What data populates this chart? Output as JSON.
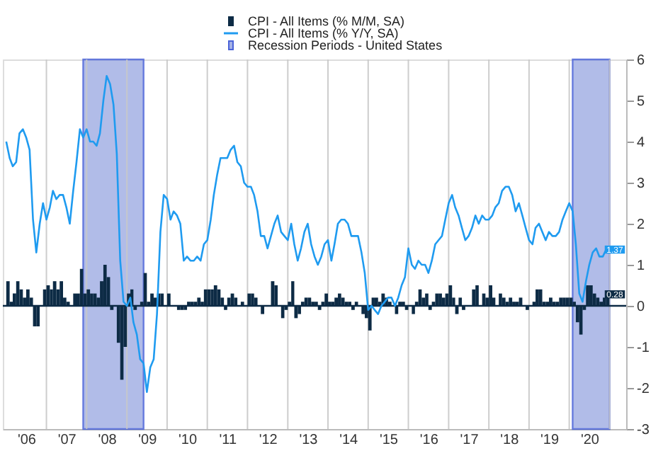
{
  "chart_data": {
    "type": "bar",
    "x": [
      "2006-01",
      "2006-02",
      "2006-03",
      "2006-04",
      "2006-05",
      "2006-06",
      "2006-07",
      "2006-08",
      "2006-09",
      "2006-10",
      "2006-11",
      "2006-12",
      "2007-01",
      "2007-02",
      "2007-03",
      "2007-04",
      "2007-05",
      "2007-06",
      "2007-07",
      "2007-08",
      "2007-09",
      "2007-10",
      "2007-11",
      "2007-12",
      "2008-01",
      "2008-02",
      "2008-03",
      "2008-04",
      "2008-05",
      "2008-06",
      "2008-07",
      "2008-08",
      "2008-09",
      "2008-10",
      "2008-11",
      "2008-12",
      "2009-01",
      "2009-02",
      "2009-03",
      "2009-04",
      "2009-05",
      "2009-06",
      "2009-07",
      "2009-08",
      "2009-09",
      "2009-10",
      "2009-11",
      "2009-12",
      "2010-01",
      "2010-02",
      "2010-03",
      "2010-04",
      "2010-05",
      "2010-06",
      "2010-07",
      "2010-08",
      "2010-09",
      "2010-10",
      "2010-11",
      "2010-12",
      "2011-01",
      "2011-02",
      "2011-03",
      "2011-04",
      "2011-05",
      "2011-06",
      "2011-07",
      "2011-08",
      "2011-09",
      "2011-10",
      "2011-11",
      "2011-12",
      "2012-01",
      "2012-02",
      "2012-03",
      "2012-04",
      "2012-05",
      "2012-06",
      "2012-07",
      "2012-08",
      "2012-09",
      "2012-10",
      "2012-11",
      "2012-12",
      "2013-01",
      "2013-02",
      "2013-03",
      "2013-04",
      "2013-05",
      "2013-06",
      "2013-07",
      "2013-08",
      "2013-09",
      "2013-10",
      "2013-11",
      "2013-12",
      "2014-01",
      "2014-02",
      "2014-03",
      "2014-04",
      "2014-05",
      "2014-06",
      "2014-07",
      "2014-08",
      "2014-09",
      "2014-10",
      "2014-11",
      "2014-12",
      "2015-01",
      "2015-02",
      "2015-03",
      "2015-04",
      "2015-05",
      "2015-06",
      "2015-07",
      "2015-08",
      "2015-09",
      "2015-10",
      "2015-11",
      "2015-12",
      "2016-01",
      "2016-02",
      "2016-03",
      "2016-04",
      "2016-05",
      "2016-06",
      "2016-07",
      "2016-08",
      "2016-09",
      "2016-10",
      "2016-11",
      "2016-12",
      "2017-01",
      "2017-02",
      "2017-03",
      "2017-04",
      "2017-05",
      "2017-06",
      "2017-07",
      "2017-08",
      "2017-09",
      "2017-10",
      "2017-11",
      "2017-12",
      "2018-01",
      "2018-02",
      "2018-03",
      "2018-04",
      "2018-05",
      "2018-06",
      "2018-07",
      "2018-08",
      "2018-09",
      "2018-10",
      "2018-11",
      "2018-12",
      "2019-01",
      "2019-02",
      "2019-03",
      "2019-04",
      "2019-05",
      "2019-06",
      "2019-07",
      "2019-08",
      "2019-09",
      "2019-10",
      "2019-11",
      "2019-12",
      "2020-01",
      "2020-02",
      "2020-03",
      "2020-04",
      "2020-05",
      "2020-06",
      "2020-07",
      "2020-08",
      "2020-09",
      "2020-10",
      "2020-11",
      "2020-12"
    ],
    "series": [
      {
        "name": "CPI - All Items (% M/M, SA)",
        "color": "#0d2b45",
        "values": [
          0.6,
          0.1,
          0.3,
          0.6,
          0.4,
          0.2,
          0.4,
          0.2,
          -0.5,
          -0.5,
          0.0,
          0.4,
          0.5,
          0.4,
          0.6,
          0.4,
          0.6,
          0.2,
          0.1,
          0.0,
          0.3,
          0.3,
          0.9,
          0.3,
          0.4,
          0.3,
          0.3,
          0.2,
          0.6,
          1.0,
          0.7,
          -0.1,
          0.0,
          -0.9,
          -1.8,
          -1.0,
          0.3,
          0.4,
          -0.1,
          0.0,
          0.1,
          0.8,
          0.1,
          0.3,
          0.2,
          0.3,
          0.3,
          0.0,
          0.3,
          0.0,
          0.0,
          -0.1,
          -0.1,
          -0.1,
          0.1,
          0.1,
          0.1,
          0.2,
          0.1,
          0.4,
          0.4,
          0.4,
          0.5,
          0.4,
          0.2,
          -0.1,
          0.2,
          0.3,
          0.2,
          0.0,
          0.1,
          0.0,
          0.3,
          0.3,
          0.2,
          0.0,
          -0.2,
          0.0,
          0.0,
          0.6,
          0.5,
          0.0,
          -0.3,
          -0.1,
          0.1,
          0.6,
          -0.3,
          -0.2,
          0.1,
          0.2,
          0.2,
          0.1,
          0.1,
          -0.1,
          0.1,
          0.3,
          0.1,
          0.1,
          0.2,
          0.3,
          0.2,
          0.1,
          0.1,
          -0.1,
          0.1,
          0.0,
          -0.2,
          -0.3,
          -0.6,
          0.2,
          0.2,
          0.1,
          0.3,
          0.2,
          0.1,
          0.0,
          -0.2,
          0.1,
          0.1,
          -0.1,
          0.0,
          -0.2,
          0.1,
          0.4,
          0.2,
          0.3,
          -0.1,
          0.1,
          0.3,
          0.3,
          0.2,
          0.3,
          0.5,
          0.2,
          -0.2,
          0.2,
          -0.1,
          0.0,
          0.0,
          0.4,
          0.5,
          0.0,
          0.3,
          0.2,
          0.5,
          0.2,
          0.0,
          0.3,
          0.2,
          0.1,
          0.2,
          0.1,
          0.1,
          0.2,
          0.0,
          -0.1,
          0.0,
          0.1,
          0.4,
          0.4,
          0.1,
          0.1,
          0.2,
          0.1,
          0.1,
          0.2,
          0.2,
          0.2,
          0.2,
          0.1,
          -0.4,
          -0.7,
          -0.1,
          0.5,
          0.5,
          0.3,
          0.2,
          0.1,
          0.2,
          0.28
        ]
      },
      {
        "name": "CPI - All Items (% Y/Y, SA)",
        "color": "#1f9bf0",
        "type": "line",
        "values": [
          4.0,
          3.6,
          3.4,
          3.5,
          4.2,
          4.3,
          4.1,
          3.8,
          2.1,
          1.3,
          2.0,
          2.5,
          2.1,
          2.4,
          2.8,
          2.6,
          2.7,
          2.7,
          2.4,
          2.0,
          2.8,
          3.5,
          4.3,
          4.1,
          4.3,
          4.0,
          4.0,
          3.9,
          4.2,
          5.0,
          5.6,
          5.4,
          4.9,
          3.7,
          1.1,
          0.1,
          0.0,
          0.2,
          -0.4,
          -0.7,
          -1.3,
          -1.4,
          -2.1,
          -1.5,
          -1.3,
          -0.2,
          1.8,
          2.7,
          2.6,
          2.1,
          2.3,
          2.2,
          2.0,
          1.1,
          1.2,
          1.1,
          1.1,
          1.2,
          1.1,
          1.5,
          1.6,
          2.1,
          2.7,
          3.2,
          3.6,
          3.6,
          3.6,
          3.8,
          3.9,
          3.5,
          3.4,
          3.0,
          2.9,
          2.9,
          2.7,
          2.3,
          1.7,
          1.7,
          1.4,
          1.7,
          2.0,
          2.2,
          1.8,
          1.7,
          1.6,
          2.0,
          1.5,
          1.1,
          1.4,
          1.8,
          2.0,
          1.5,
          1.2,
          1.0,
          1.2,
          1.5,
          1.6,
          1.1,
          1.5,
          2.0,
          2.1,
          2.1,
          2.0,
          1.7,
          1.7,
          1.7,
          1.3,
          0.8,
          -0.1,
          0.0,
          -0.1,
          -0.2,
          0.0,
          0.1,
          0.2,
          0.2,
          0.0,
          0.2,
          0.5,
          0.7,
          1.4,
          1.0,
          0.9,
          1.1,
          1.0,
          1.0,
          0.8,
          1.1,
          1.5,
          1.6,
          1.7,
          2.1,
          2.5,
          2.7,
          2.4,
          2.2,
          1.9,
          1.6,
          1.7,
          1.9,
          2.2,
          2.0,
          2.2,
          2.1,
          2.1,
          2.2,
          2.4,
          2.5,
          2.8,
          2.9,
          2.9,
          2.7,
          2.3,
          2.5,
          2.2,
          1.9,
          1.6,
          1.5,
          1.9,
          2.0,
          1.8,
          1.6,
          1.8,
          1.7,
          1.7,
          1.8,
          2.1,
          2.3,
          2.5,
          2.3,
          1.5,
          0.3,
          0.1,
          0.6,
          1.0,
          1.3,
          1.4,
          1.2,
          1.2,
          1.37
        ]
      }
    ],
    "bands": [
      {
        "axis": "x",
        "from": "2007-12",
        "to": "2009-06",
        "label": "Recession Periods - United States",
        "color": "#a4b1e5"
      },
      {
        "axis": "x",
        "from": "2020-02",
        "to": "2021-01",
        "color": "#a4b1e5"
      }
    ],
    "ref_lines": [
      {
        "axis": "y",
        "value": 0,
        "color": "#0d2b45"
      }
    ],
    "annotations": [
      {
        "text": "1.37",
        "x": "2020-12",
        "y": 1.37
      },
      {
        "text": "0.28",
        "x": "2020-12",
        "y": 0.28
      }
    ],
    "xlim": [
      "2005-12-01",
      "2021-06-01"
    ],
    "xticks": [
      {
        "value": "2006-07-01",
        "label": "'06"
      },
      {
        "value": "2007-07-01",
        "label": "'07"
      },
      {
        "value": "2008-07-01",
        "label": "'08"
      },
      {
        "value": "2009-07-01",
        "label": "'09"
      },
      {
        "value": "2010-07-01",
        "label": "'10"
      },
      {
        "value": "2011-07-01",
        "label": "'11"
      },
      {
        "value": "2012-07-01",
        "label": "'12"
      },
      {
        "value": "2013-07-01",
        "label": "'13"
      },
      {
        "value": "2014-07-01",
        "label": "'14"
      },
      {
        "value": "2015-07-01",
        "label": "'15"
      },
      {
        "value": "2016-07-01",
        "label": "'16"
      },
      {
        "value": "2017-07-01",
        "label": "'17"
      },
      {
        "value": "2018-07-01",
        "label": "'18"
      },
      {
        "value": "2019-07-01",
        "label": "'19"
      },
      {
        "value": "2020-07-01",
        "label": "'20"
      },
      {
        "value": "2007-01-01",
        "label": null
      },
      {
        "value": "2008-01-01",
        "label": null
      },
      {
        "value": "2009-01-01",
        "label": null
      },
      {
        "value": "2010-01-01",
        "label": null
      },
      {
        "value": "2011-01-01",
        "label": null
      },
      {
        "value": "2012-01-01",
        "label": null
      },
      {
        "value": "2013-01-01",
        "label": null
      },
      {
        "value": "2014-01-01",
        "label": null
      },
      {
        "value": "2015-01-01",
        "label": null
      },
      {
        "value": "2016-01-01",
        "label": null
      },
      {
        "value": "2017-01-01",
        "label": null
      },
      {
        "value": "2018-01-01",
        "label": null
      },
      {
        "value": "2019-01-01",
        "label": null
      },
      {
        "value": "2020-01-01",
        "label": null
      },
      {
        "value": "2021-01-01",
        "label": null
      }
    ],
    "ylim": [
      -3,
      6
    ],
    "yticks": [
      -3,
      -2,
      -1,
      0,
      1,
      2,
      3,
      4,
      5,
      6
    ],
    "grid": "x",
    "legend": "top"
  }
}
